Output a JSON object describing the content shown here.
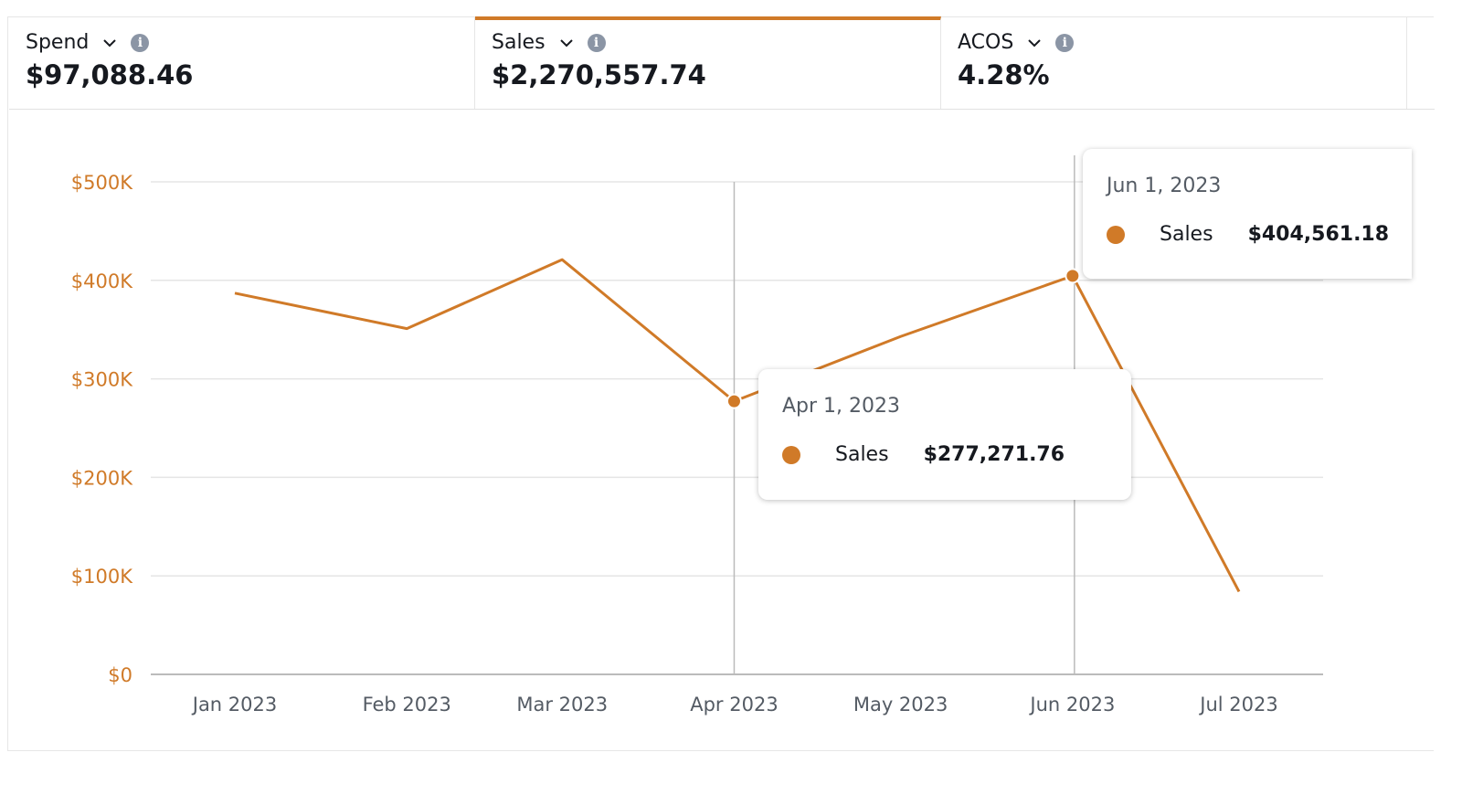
{
  "metrics": [
    {
      "label": "Spend",
      "value": "$97,088.46",
      "active": false
    },
    {
      "label": "Sales",
      "value": "$2,270,557.74",
      "active": true
    },
    {
      "label": "ACOS",
      "value": "4.28%",
      "active": false
    }
  ],
  "colors": {
    "accent": "#d07a28",
    "text": "#16191f",
    "muted": "#545b64",
    "grid": "#e5e5e5"
  },
  "chart_data": {
    "type": "line",
    "series": [
      {
        "name": "Sales",
        "color": "#d07a28"
      }
    ],
    "x": [
      "2023-01-01",
      "2023-02-01",
      "2023-03-01",
      "2023-04-01",
      "2023-05-01",
      "2023-06-01",
      "2023-07-01"
    ],
    "values": [
      387000,
      351000,
      421000,
      277271.76,
      343000,
      404561.18,
      84000
    ],
    "xtick_labels": [
      "Jan 2023",
      "Feb 2023",
      "Mar 2023",
      "Apr 2023",
      "May 2023",
      "Jun 2023",
      "Jul 2023"
    ],
    "ytick_labels": [
      "$0",
      "$100K",
      "$200K",
      "$300K",
      "$400K",
      "$500K"
    ],
    "yticks": [
      0,
      100000,
      200000,
      300000,
      400000,
      500000
    ],
    "ylim": [
      0,
      500000
    ],
    "grid": true,
    "tooltips": [
      {
        "date": "Apr 1, 2023",
        "series": "Sales",
        "value": "$277,271.76"
      },
      {
        "date": "Jun 1, 2023",
        "series": "Sales",
        "value": "$404,561.18"
      }
    ]
  }
}
